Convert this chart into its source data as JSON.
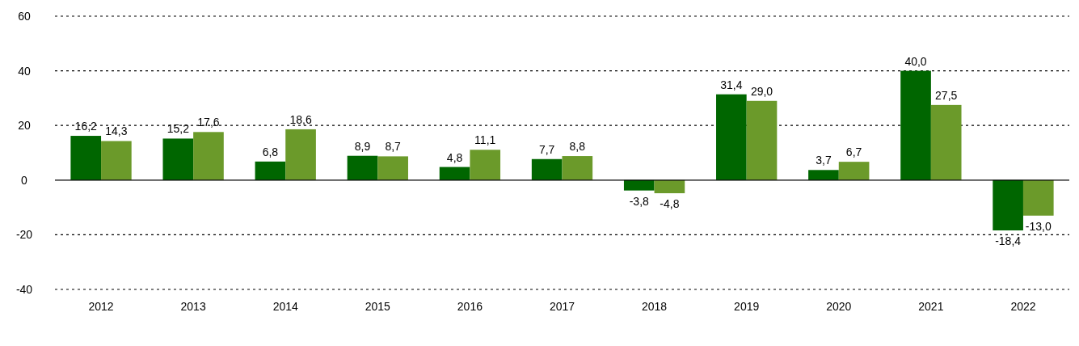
{
  "chart_data": {
    "type": "bar",
    "categories": [
      "2012",
      "2013",
      "2014",
      "2015",
      "2016",
      "2017",
      "2018",
      "2019",
      "2020",
      "2021",
      "2022"
    ],
    "series": [
      {
        "color": "#006600",
        "values": [
          16.2,
          15.2,
          6.8,
          8.9,
          4.8,
          7.7,
          -3.8,
          31.4,
          3.7,
          40.0,
          -18.4
        ],
        "value_labels": [
          "16,2",
          "15,2",
          "6,8",
          "8,9",
          "4,8",
          "7,7",
          "-3,8",
          "31,4",
          "3,7",
          "40,0",
          "-18,4"
        ]
      },
      {
        "color": "#6b9a2a",
        "values": [
          14.3,
          17.6,
          18.6,
          8.7,
          11.1,
          8.8,
          -4.8,
          29.0,
          6.7,
          27.5,
          -13.0
        ],
        "value_labels": [
          "14,3",
          "17,6",
          "18,6",
          "8,7",
          "11,1",
          "8,8",
          "-4,8",
          "29,0",
          "6,7",
          "27,5",
          "-13,0"
        ]
      }
    ],
    "ylim": [
      -40,
      60
    ],
    "yticks": [
      -40,
      -20,
      0,
      20,
      40,
      60
    ],
    "grid": "y"
  }
}
